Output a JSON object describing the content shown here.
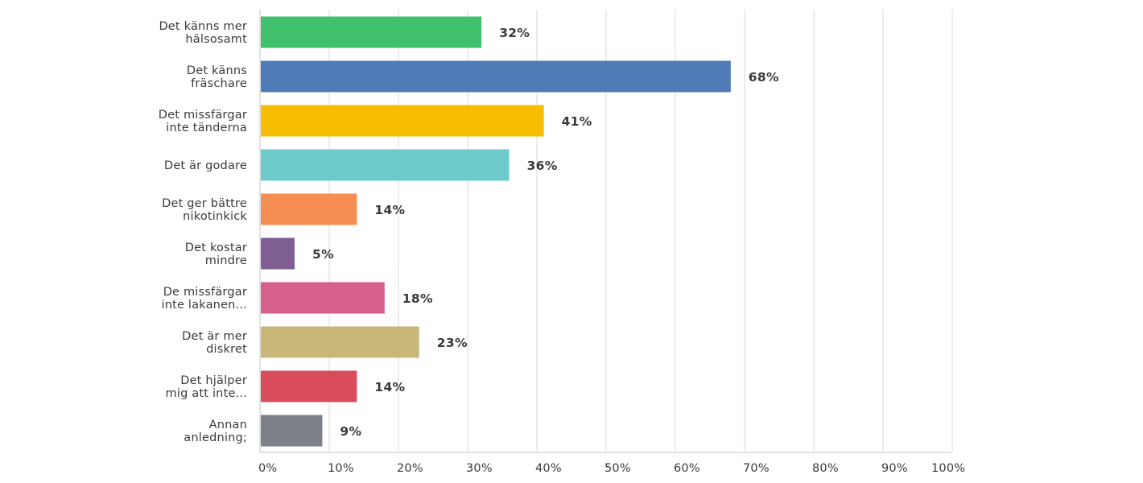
{
  "chart_data": {
    "type": "bar",
    "orientation": "horizontal",
    "title": "",
    "xlabel": "",
    "ylabel": "",
    "xlim": [
      0,
      100
    ],
    "value_suffix": "%",
    "categories": [
      [
        "Det känns mer",
        "hälsosamt"
      ],
      [
        "Det känns",
        "fräschare"
      ],
      [
        "Det missfärgar",
        "inte tänderna"
      ],
      [
        "Det är godare"
      ],
      [
        "Det ger bättre",
        "nikotinkick"
      ],
      [
        "Det kostar",
        "mindre"
      ],
      [
        "De missfärgar",
        "inte lakanen..."
      ],
      [
        "Det är mer",
        "diskret"
      ],
      [
        "Det hjälper",
        "mig att inte..."
      ],
      [
        "Annan",
        "anledning;"
      ]
    ],
    "values": [
      32,
      68,
      41,
      36,
      14,
      5,
      18,
      23,
      14,
      9
    ],
    "value_labels": [
      "32%",
      "68%",
      "41%",
      "36%",
      "14%",
      "5%",
      "18%",
      "23%",
      "14%",
      "9%"
    ],
    "colors": [
      "#41c06e",
      "#4f7bb7",
      "#f7be00",
      "#6ccacb",
      "#f68d52",
      "#7f5e94",
      "#d65f8e",
      "#c9b77a",
      "#d94c5c",
      "#7b8186"
    ],
    "ticks": [
      "0%",
      "10%",
      "20%",
      "30%",
      "40%",
      "50%",
      "60%",
      "70%",
      "80%",
      "90%",
      "100%"
    ],
    "grid": true
  }
}
